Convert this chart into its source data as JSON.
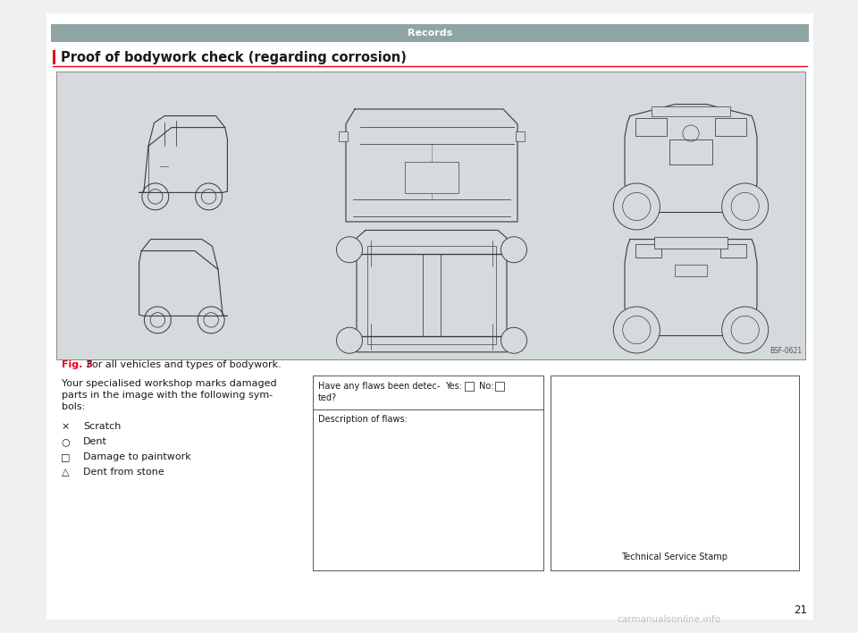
{
  "bg_color": "#eef0f2",
  "page_bg": "#ffffff",
  "header_bg": "#8fa5a3",
  "header_text": "Records",
  "header_text_color": "#ffffff",
  "section_title": "Proof of bodywork check (regarding corrosion)",
  "section_title_color": "#1a1a1a",
  "red_line_color": "#e8001c",
  "left_bar_color": "#e8001c",
  "car_image_bg": "#d5dadd",
  "fig_label": "Fig. 3",
  "fig_label_color": "#e8001c",
  "fig_caption": "  For all vehicles and types of bodywork.",
  "body_text_line1": "Your specialised workshop marks damaged",
  "body_text_line2": "parts in the image with the following sym-",
  "body_text_line3": "bols:",
  "symbols": [
    {
      "symbol": "×",
      "text": "Scratch"
    },
    {
      "symbol": "○",
      "text": "Dent"
    },
    {
      "symbol": "□",
      "text": "Damage to paintwork"
    },
    {
      "symbol": "△",
      "text": "Dent from stone"
    }
  ],
  "flaws_line1": "Have any flaws been detec-",
  "flaws_line2": "ted?",
  "flaws_yes": "Yes:",
  "flaws_no": "No:",
  "flaws_desc": "Description of flaws:",
  "stamp_text": "Technical Service Stamp",
  "page_number": "21",
  "watermark": "carmanualsonline.info",
  "image_ref": "BSF-0621",
  "line_color": "#555555",
  "text_color": "#1a1a1a"
}
